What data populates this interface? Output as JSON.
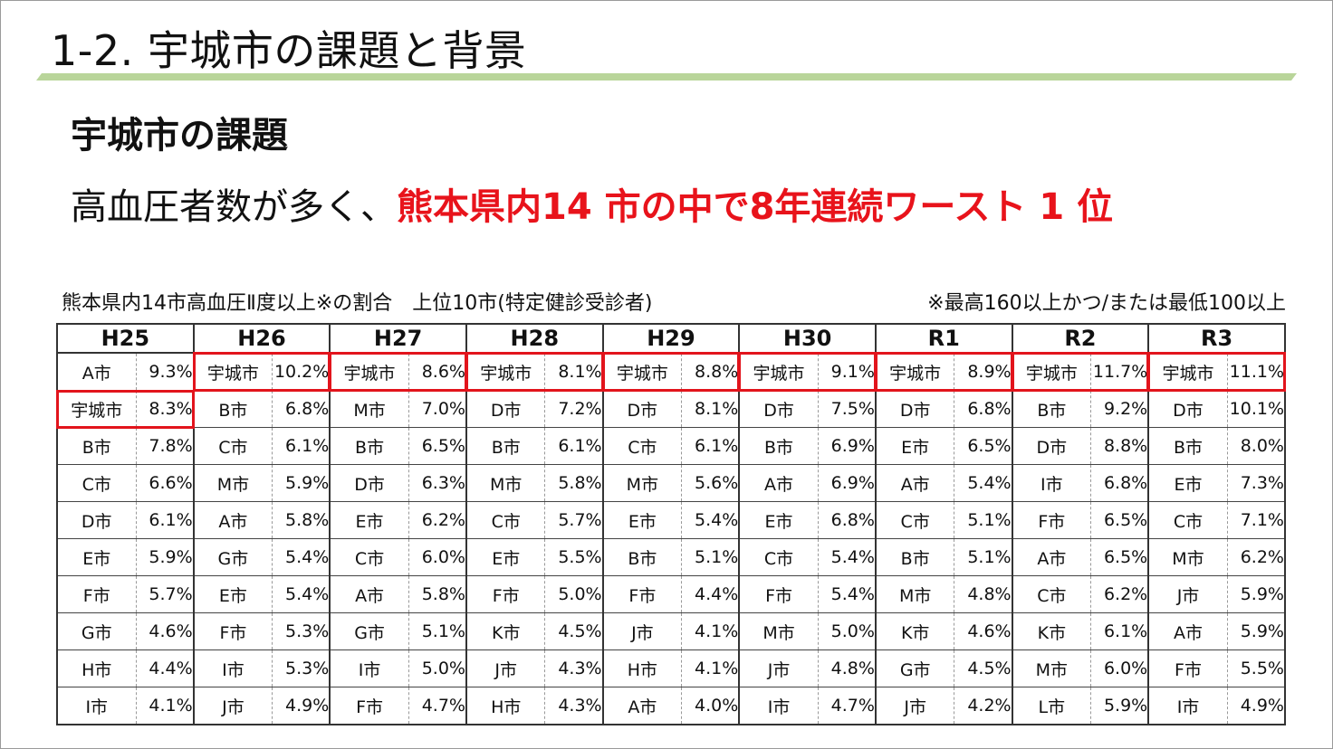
{
  "slide": {
    "title": "1-2. 宇城市の課題と背景",
    "subtitle": "宇城市の課題",
    "headline_prefix": "高血圧者数が多く、",
    "headline_highlight": "熊本県内14 市の中で8年連続ワースト 1 位",
    "accent_color": "#e8131b",
    "rule_color": "#b9d59a"
  },
  "table": {
    "caption": "熊本県内14市高血圧Ⅱ度以上※の割合　上位10市(特定健診受診者)",
    "note": "※最高160以上かつ/または最低100以上",
    "highlight_city": "宇城市",
    "highlight_color": "#e2141c",
    "years": [
      "H25",
      "H26",
      "H27",
      "H28",
      "H29",
      "H30",
      "R1",
      "R2",
      "R3"
    ],
    "rows": [
      [
        [
          "A市",
          "9.3%"
        ],
        [
          "宇城市",
          "10.2%"
        ],
        [
          "宇城市",
          "8.6%"
        ],
        [
          "宇城市",
          "8.1%"
        ],
        [
          "宇城市",
          "8.8%"
        ],
        [
          "宇城市",
          "9.1%"
        ],
        [
          "宇城市",
          "8.9%"
        ],
        [
          "宇城市",
          "11.7%"
        ],
        [
          "宇城市",
          "11.1%"
        ]
      ],
      [
        [
          "宇城市",
          "8.3%"
        ],
        [
          "B市",
          "6.8%"
        ],
        [
          "M市",
          "7.0%"
        ],
        [
          "D市",
          "7.2%"
        ],
        [
          "D市",
          "8.1%"
        ],
        [
          "D市",
          "7.5%"
        ],
        [
          "D市",
          "6.8%"
        ],
        [
          "B市",
          "9.2%"
        ],
        [
          "D市",
          "10.1%"
        ]
      ],
      [
        [
          "B市",
          "7.8%"
        ],
        [
          "C市",
          "6.1%"
        ],
        [
          "B市",
          "6.5%"
        ],
        [
          "B市",
          "6.1%"
        ],
        [
          "C市",
          "6.1%"
        ],
        [
          "B市",
          "6.9%"
        ],
        [
          "E市",
          "6.5%"
        ],
        [
          "D市",
          "8.8%"
        ],
        [
          "B市",
          "8.0%"
        ]
      ],
      [
        [
          "C市",
          "6.6%"
        ],
        [
          "M市",
          "5.9%"
        ],
        [
          "D市",
          "6.3%"
        ],
        [
          "M市",
          "5.8%"
        ],
        [
          "M市",
          "5.6%"
        ],
        [
          "A市",
          "6.9%"
        ],
        [
          "A市",
          "5.4%"
        ],
        [
          "I市",
          "6.8%"
        ],
        [
          "E市",
          "7.3%"
        ]
      ],
      [
        [
          "D市",
          "6.1%"
        ],
        [
          "A市",
          "5.8%"
        ],
        [
          "E市",
          "6.2%"
        ],
        [
          "C市",
          "5.7%"
        ],
        [
          "E市",
          "5.4%"
        ],
        [
          "E市",
          "6.8%"
        ],
        [
          "C市",
          "5.1%"
        ],
        [
          "F市",
          "6.5%"
        ],
        [
          "C市",
          "7.1%"
        ]
      ],
      [
        [
          "E市",
          "5.9%"
        ],
        [
          "G市",
          "5.4%"
        ],
        [
          "C市",
          "6.0%"
        ],
        [
          "E市",
          "5.5%"
        ],
        [
          "B市",
          "5.1%"
        ],
        [
          "C市",
          "5.4%"
        ],
        [
          "B市",
          "5.1%"
        ],
        [
          "A市",
          "6.5%"
        ],
        [
          "M市",
          "6.2%"
        ]
      ],
      [
        [
          "F市",
          "5.7%"
        ],
        [
          "E市",
          "5.4%"
        ],
        [
          "A市",
          "5.8%"
        ],
        [
          "F市",
          "5.0%"
        ],
        [
          "F市",
          "4.4%"
        ],
        [
          "F市",
          "5.4%"
        ],
        [
          "M市",
          "4.8%"
        ],
        [
          "C市",
          "6.2%"
        ],
        [
          "J市",
          "5.9%"
        ]
      ],
      [
        [
          "G市",
          "4.6%"
        ],
        [
          "F市",
          "5.3%"
        ],
        [
          "G市",
          "5.1%"
        ],
        [
          "K市",
          "4.5%"
        ],
        [
          "J市",
          "4.1%"
        ],
        [
          "M市",
          "5.0%"
        ],
        [
          "K市",
          "4.6%"
        ],
        [
          "K市",
          "6.1%"
        ],
        [
          "A市",
          "5.9%"
        ]
      ],
      [
        [
          "H市",
          "4.4%"
        ],
        [
          "I市",
          "5.3%"
        ],
        [
          "I市",
          "5.0%"
        ],
        [
          "J市",
          "4.3%"
        ],
        [
          "H市",
          "4.1%"
        ],
        [
          "J市",
          "4.8%"
        ],
        [
          "G市",
          "4.5%"
        ],
        [
          "M市",
          "6.0%"
        ],
        [
          "F市",
          "5.5%"
        ]
      ],
      [
        [
          "I市",
          "4.1%"
        ],
        [
          "J市",
          "4.9%"
        ],
        [
          "F市",
          "4.7%"
        ],
        [
          "H市",
          "4.3%"
        ],
        [
          "A市",
          "4.0%"
        ],
        [
          "I市",
          "4.7%"
        ],
        [
          "J市",
          "4.2%"
        ],
        [
          "L市",
          "5.9%"
        ],
        [
          "I市",
          "4.9%"
        ]
      ]
    ]
  }
}
